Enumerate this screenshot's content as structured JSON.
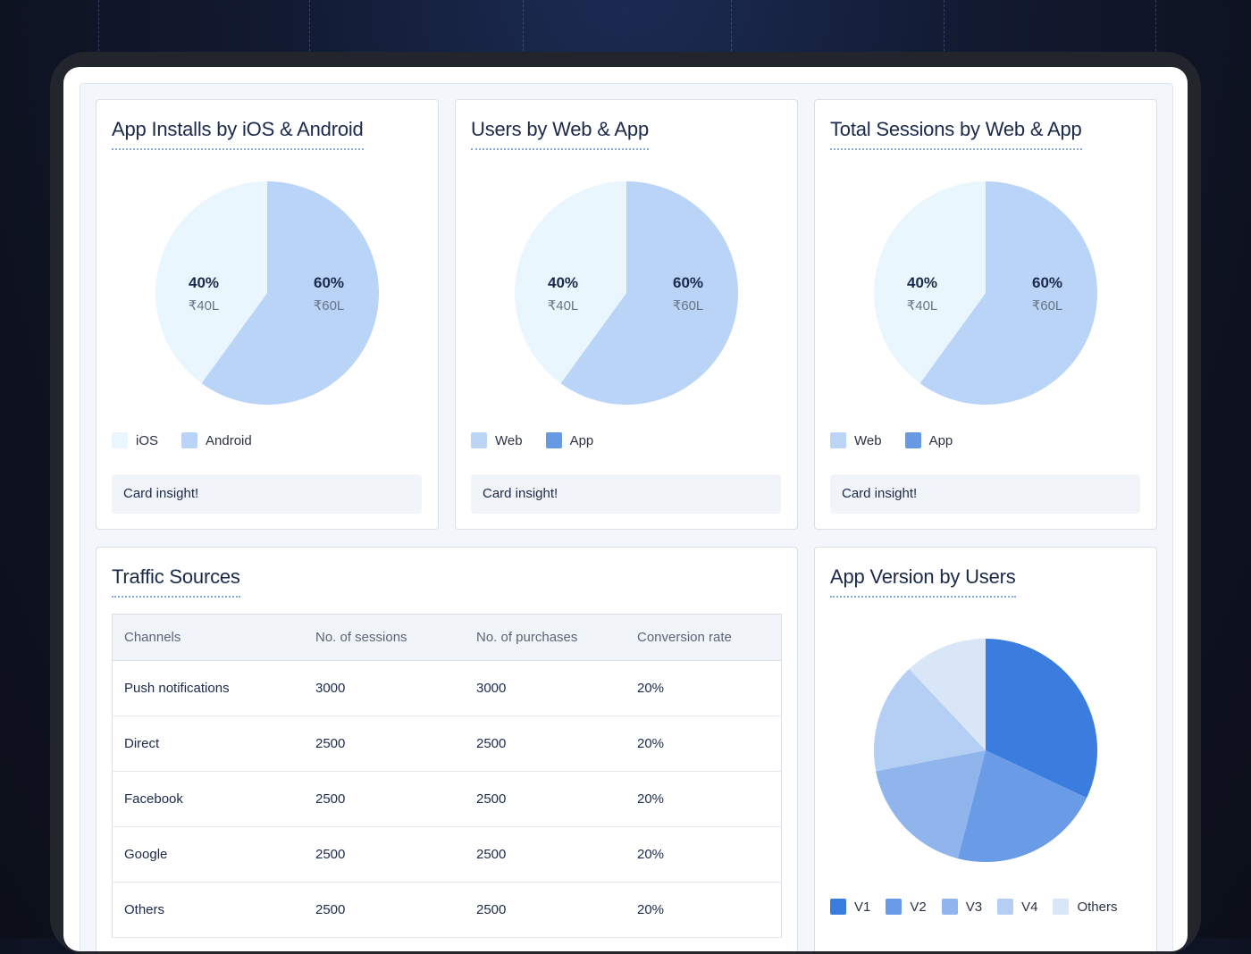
{
  "cards": [
    {
      "title": "App Installs by iOS & Android",
      "left": {
        "pct": "40%",
        "amt": "₹40L"
      },
      "right": {
        "pct": "60%",
        "amt": "₹60L"
      },
      "legend": [
        {
          "label": "iOS",
          "color": "#eaf6fd"
        },
        {
          "label": "Android",
          "color": "#b9d4f7"
        }
      ],
      "insight": "Card insight!"
    },
    {
      "title": "Users by Web & App",
      "left": {
        "pct": "40%",
        "amt": "₹40L"
      },
      "right": {
        "pct": "60%",
        "amt": "₹60L"
      },
      "legend": [
        {
          "label": "Web",
          "color": "#bcd5f7"
        },
        {
          "label": "App",
          "color": "#6899e3"
        }
      ],
      "insight": "Card insight!"
    },
    {
      "title": "Total Sessions by Web & App",
      "left": {
        "pct": "40%",
        "amt": "₹40L"
      },
      "right": {
        "pct": "60%",
        "amt": "₹60L"
      },
      "legend": [
        {
          "label": "Web",
          "color": "#bcd5f7"
        },
        {
          "label": "App",
          "color": "#6899e3"
        }
      ],
      "insight": "Card insight!"
    }
  ],
  "traffic": {
    "title": "Traffic Sources",
    "columns": [
      "Channels",
      "No. of sessions",
      "No. of purchases",
      "Conversion rate"
    ],
    "rows": [
      [
        "Push notifications",
        "3000",
        "3000",
        "20%"
      ],
      [
        "Direct",
        "2500",
        "2500",
        "20%"
      ],
      [
        "Facebook",
        "2500",
        "2500",
        "20%"
      ],
      [
        "Google",
        "2500",
        "2500",
        "20%"
      ],
      [
        "Others",
        "2500",
        "2500",
        "20%"
      ]
    ]
  },
  "version": {
    "title": "App Version by Users",
    "legend": [
      {
        "label": "V1",
        "color": "#3a7ddf"
      },
      {
        "label": "V2",
        "color": "#6a9be6"
      },
      {
        "label": "V3",
        "color": "#90b5ec"
      },
      {
        "label": "V4",
        "color": "#b5cef3"
      },
      {
        "label": "Others",
        "color": "#d9e6f8"
      }
    ]
  },
  "chart_data": [
    {
      "type": "pie",
      "title": "App Installs by iOS & Android",
      "categories": [
        "iOS",
        "Android"
      ],
      "values": [
        40,
        60
      ],
      "labels": [
        "₹40L",
        "₹60L"
      ],
      "colors": [
        "#eaf6fd",
        "#b9d4f7"
      ]
    },
    {
      "type": "pie",
      "title": "Users by Web & App",
      "categories": [
        "Web",
        "App"
      ],
      "values": [
        40,
        60
      ],
      "labels": [
        "₹40L",
        "₹60L"
      ],
      "colors": [
        "#eaf6fd",
        "#b9d4f7"
      ]
    },
    {
      "type": "pie",
      "title": "Total Sessions by Web & App",
      "categories": [
        "Web",
        "App"
      ],
      "values": [
        40,
        60
      ],
      "labels": [
        "₹40L",
        "₹60L"
      ],
      "colors": [
        "#eaf6fd",
        "#b9d4f7"
      ]
    },
    {
      "type": "pie",
      "title": "App Version by Users",
      "categories": [
        "V1",
        "V2",
        "V3",
        "V4",
        "Others"
      ],
      "values": [
        32,
        22,
        18,
        16,
        12
      ],
      "colors": [
        "#3a7ddf",
        "#6a9be6",
        "#90b5ec",
        "#b5cef3",
        "#d9e6f8"
      ]
    }
  ]
}
